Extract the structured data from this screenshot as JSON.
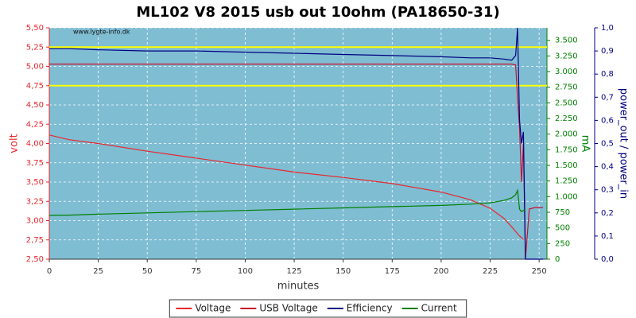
{
  "chart_data": {
    "type": "line",
    "title": "ML102 V8 2015 usb out 10ohm (PA18650-31)",
    "annotation": "www.lygte-info.dk",
    "xlabel": "minutes",
    "ylabel": "volt",
    "y2label": "mA",
    "y3label": "power_out / power_in",
    "x": [
      0,
      10,
      25,
      50,
      75,
      100,
      125,
      150,
      175,
      200,
      215,
      225,
      232,
      236,
      238,
      239,
      240,
      241,
      242,
      243,
      245,
      248,
      252
    ],
    "series": [
      {
        "name": "Voltage",
        "color": "#e8272a",
        "axis": "y",
        "values": [
          4.11,
          4.05,
          4.0,
          3.9,
          3.81,
          3.72,
          3.63,
          3.56,
          3.48,
          3.37,
          3.27,
          3.16,
          3.03,
          2.92,
          2.86,
          2.83,
          2.8,
          2.78,
          2.75,
          null,
          null,
          null,
          null
        ]
      },
      {
        "name": "USB Voltage",
        "color": "#c8102e",
        "axis": "y",
        "values": [
          5.03,
          5.03,
          5.03,
          5.03,
          5.03,
          5.03,
          5.03,
          5.03,
          5.03,
          5.03,
          5.03,
          5.03,
          5.03,
          5.03,
          5.02,
          4.6,
          4.2,
          3.5,
          4.0,
          2.5,
          3.15,
          3.17,
          3.17
        ]
      },
      {
        "name": "Efficiency",
        "color": "#000080",
        "axis": "y3",
        "values": [
          0.91,
          0.91,
          0.905,
          0.9,
          0.9,
          0.895,
          0.89,
          0.885,
          0.88,
          0.875,
          0.87,
          0.87,
          0.865,
          0.86,
          0.88,
          1.0,
          0.6,
          0.5,
          0.55,
          0,
          0,
          0,
          0
        ]
      },
      {
        "name": "Current",
        "color": "#008000",
        "axis": "y2",
        "values": [
          700,
          705,
          720,
          740,
          760,
          780,
          800,
          820,
          840,
          860,
          880,
          900,
          940,
          980,
          1030,
          1100,
          800,
          760,
          780,
          800,
          null,
          null,
          null
        ]
      }
    ],
    "reference_lines": [
      {
        "value": 5.25,
        "color": "#ffff00"
      },
      {
        "value": 4.75,
        "color": "#ffff00"
      }
    ],
    "xlim": [
      0,
      254
    ],
    "xticks": [
      0,
      25,
      50,
      75,
      100,
      125,
      150,
      175,
      200,
      225,
      250
    ],
    "ylim": [
      2.5,
      5.5
    ],
    "yticks": [
      {
        "value": 2.5,
        "label": "2,50"
      },
      {
        "value": 2.75,
        "label": "2,75"
      },
      {
        "value": 3.0,
        "label": "3,00"
      },
      {
        "value": 3.25,
        "label": "3,25"
      },
      {
        "value": 3.5,
        "label": "3,50"
      },
      {
        "value": 3.75,
        "label": "3,75"
      },
      {
        "value": 4.0,
        "label": "4,00"
      },
      {
        "value": 4.25,
        "label": "4,25"
      },
      {
        "value": 4.5,
        "label": "4,50"
      },
      {
        "value": 4.75,
        "label": "4,75"
      },
      {
        "value": 5.0,
        "label": "5,00"
      },
      {
        "value": 5.25,
        "label": "5,25"
      },
      {
        "value": 5.5,
        "label": "5,50"
      }
    ],
    "y2lim": [
      0,
      3700
    ],
    "y2ticks": [
      0,
      250,
      500,
      750,
      {
        "value": 1000,
        "label": "1.000"
      },
      {
        "value": 1250,
        "label": "1.250"
      },
      {
        "value": 1500,
        "label": "1.500"
      },
      {
        "value": 1750,
        "label": "1.750"
      },
      {
        "value": 2000,
        "label": "2.000"
      },
      {
        "value": 2250,
        "label": "2.250"
      },
      {
        "value": 2500,
        "label": "2.500"
      },
      {
        "value": 2750,
        "label": "2.750"
      },
      {
        "value": 3000,
        "label": "3.000"
      },
      {
        "value": 3250,
        "label": "3.250"
      },
      {
        "value": 3500,
        "label": "3.500"
      }
    ],
    "y3lim": [
      0,
      1.0
    ],
    "y3ticks": [
      {
        "value": 0,
        "label": "0,0"
      },
      {
        "value": 0.1,
        "label": "0,1"
      },
      {
        "value": 0.2,
        "label": "0,2"
      },
      {
        "value": 0.3,
        "label": "0,3"
      },
      {
        "value": 0.4,
        "label": "0,4"
      },
      {
        "value": 0.5,
        "label": "0,5"
      },
      {
        "value": 0.6,
        "label": "0,6"
      },
      {
        "value": 0.7,
        "label": "0,7"
      },
      {
        "value": 0.8,
        "label": "0,8"
      },
      {
        "value": 0.9,
        "label": "0,9"
      },
      {
        "value": 1.0,
        "label": "1,0"
      }
    ],
    "ycolor": "#e8272a",
    "y2color": "#008000",
    "y3color": "#000080",
    "background": "#7fbdd3",
    "grid": true,
    "legend": "bottom"
  }
}
